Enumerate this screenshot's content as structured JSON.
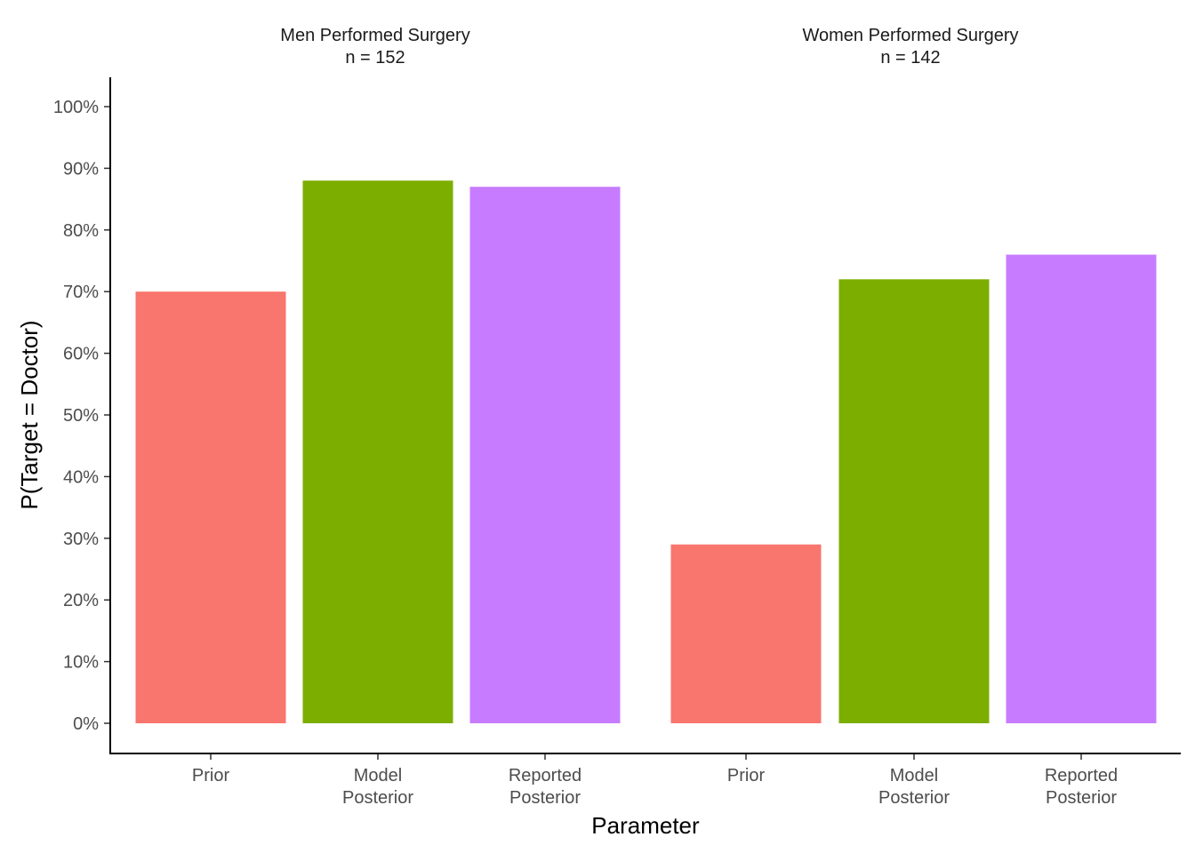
{
  "chart_data": {
    "type": "bar",
    "xlabel": "Parameter",
    "ylabel": "P(Target = Doctor)",
    "ylim": [
      0,
      1
    ],
    "y_ticks": [
      "0%",
      "10%",
      "20%",
      "30%",
      "40%",
      "50%",
      "60%",
      "70%",
      "80%",
      "90%",
      "100%"
    ],
    "grid": false,
    "category_labels": [
      [
        "Prior"
      ],
      [
        "Model",
        "Posterior"
      ],
      [
        "Reported",
        "Posterior"
      ]
    ],
    "colors": [
      "#F8766D",
      "#7CAE00",
      "#C77CFF"
    ],
    "panels": [
      {
        "title": "Men Performed Surgery",
        "subtitle": "n = 152",
        "values": [
          0.7,
          0.88,
          0.87
        ]
      },
      {
        "title": "Women Performed Surgery",
        "subtitle": "n = 142",
        "values": [
          0.29,
          0.72,
          0.76
        ]
      }
    ]
  }
}
